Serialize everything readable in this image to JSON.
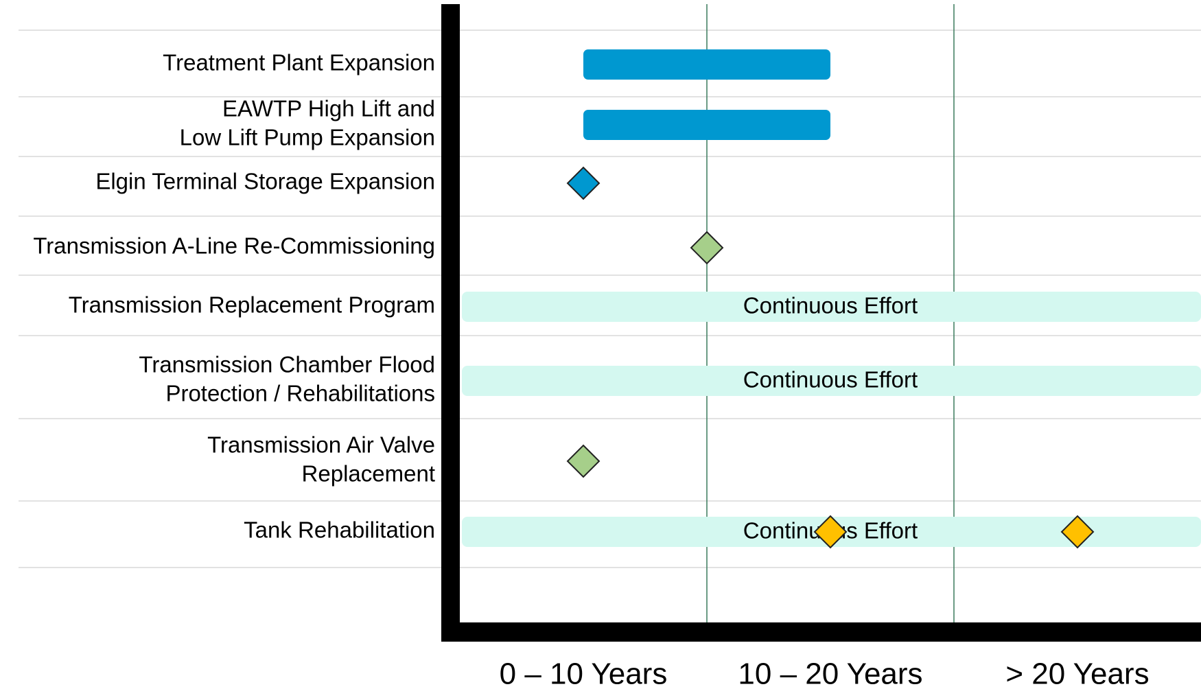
{
  "chart_data": {
    "type": "timeline",
    "xlim": [
      0,
      30
    ],
    "xticks": [
      0,
      10,
      20,
      30
    ],
    "x_bands": [
      "0 – 10 Years",
      "10 – 20 Years",
      "> 20 Years"
    ],
    "grid": true,
    "rows": [
      {
        "label": [
          "Treatment Plant Expansion"
        ],
        "bars": [
          {
            "start": 5,
            "end": 15,
            "color": "#0098d0"
          }
        ]
      },
      {
        "label": [
          "EAWTP High Lift and",
          "Low Lift Pump Expansion"
        ],
        "bars": [
          {
            "start": 5,
            "end": 15,
            "color": "#0098d0"
          }
        ]
      },
      {
        "label": [
          "Elgin Terminal Storage Expansion"
        ],
        "milestones": [
          {
            "x": 5,
            "color": "#0098d0"
          }
        ]
      },
      {
        "label": [
          "Transmission A-Line Re-Commissioning"
        ],
        "milestones": [
          {
            "x": 10,
            "color": "#a6cf8a"
          }
        ]
      },
      {
        "label": [
          "Transmission Replacement Program"
        ],
        "continuous": {
          "label": "Continuous Effort",
          "color": "#d4f8f0"
        }
      },
      {
        "label": [
          "Transmission Chamber Flood",
          "Protection / Rehabilitations"
        ],
        "continuous": {
          "label": "Continuous Effort",
          "color": "#d4f8f0"
        }
      },
      {
        "label": [
          "Transmission Air Valve",
          "Replacement"
        ],
        "milestones": [
          {
            "x": 5,
            "color": "#a6cf8a"
          }
        ]
      },
      {
        "label": [
          "Tank Rehabilitation"
        ],
        "continuous": {
          "label": "Continuous Effort",
          "color": "#d4f8f0"
        },
        "milestones": [
          {
            "x": 15,
            "color": "#ffc000"
          },
          {
            "x": 25,
            "color": "#ffc000"
          }
        ]
      }
    ]
  }
}
